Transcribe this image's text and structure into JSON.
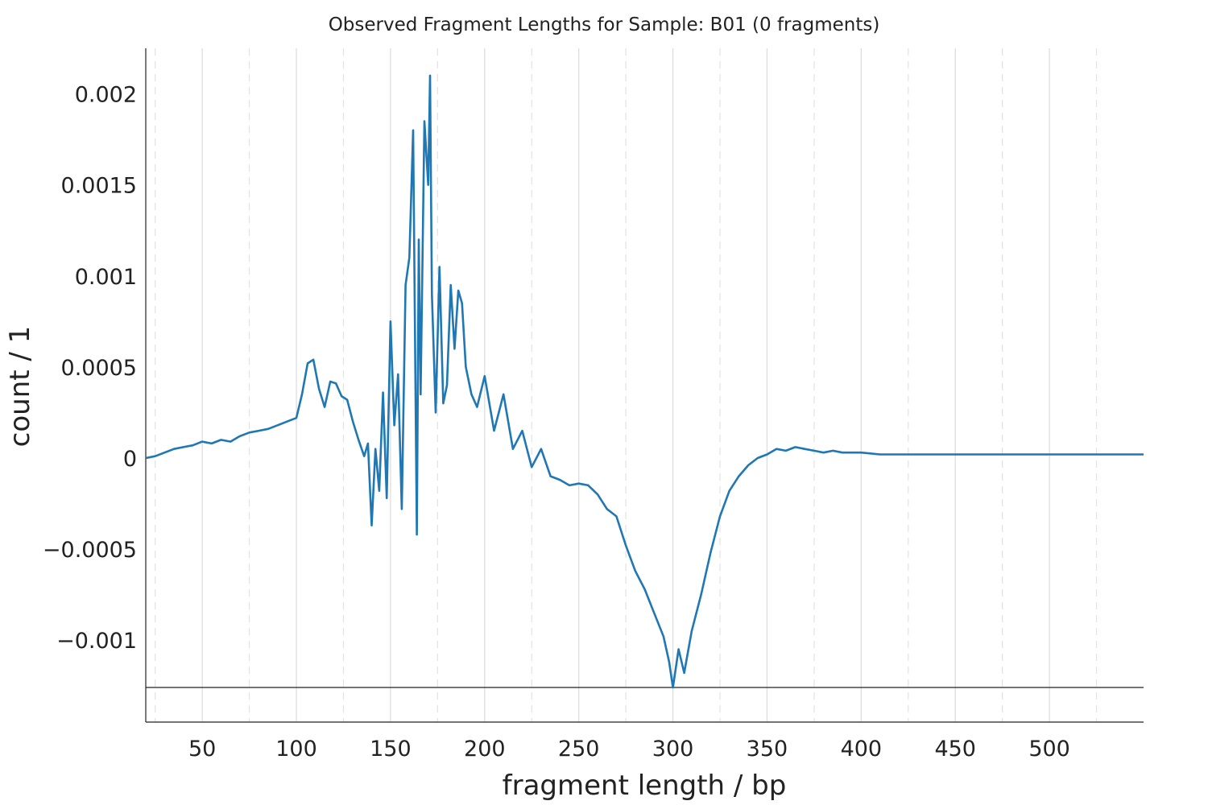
{
  "chart_data": {
    "type": "line",
    "title": "Observed Fragment Lengths for Sample: B01 (0 fragments)",
    "xlabel": "fragment length / bp",
    "ylabel": "count / 1",
    "xlim": [
      20,
      550
    ],
    "ylim": [
      -0.00145,
      0.00225
    ],
    "xticks": [
      50,
      100,
      150,
      200,
      250,
      300,
      350,
      400,
      450,
      500
    ],
    "xtick_labels": [
      "50",
      "100",
      "150",
      "200",
      "250",
      "300",
      "350",
      "400",
      "450",
      "500"
    ],
    "x_minor_ticks": [
      25,
      75,
      125,
      175,
      225,
      275,
      325,
      375,
      425,
      475,
      525
    ],
    "yticks": [
      0.002,
      0.0015,
      0.001,
      0.0005,
      0,
      -0.0005,
      -0.001
    ],
    "ytick_labels": [
      "0.002",
      "0.0015",
      "0.001",
      "0.0005",
      "0",
      "−0.0005",
      "−0.001"
    ],
    "grid": "vertical",
    "hline": -0.00126,
    "series": [
      {
        "color": "#1f77b4",
        "x": [
          20,
          25,
          30,
          35,
          40,
          45,
          50,
          55,
          60,
          65,
          70,
          75,
          80,
          85,
          90,
          95,
          100,
          103,
          106,
          109,
          112,
          115,
          118,
          121,
          124,
          127,
          130,
          133,
          136,
          138,
          140,
          142,
          144,
          146,
          148,
          150,
          152,
          154,
          156,
          158,
          160,
          162,
          164,
          165,
          166,
          168,
          170,
          171,
          172,
          174,
          176,
          178,
          180,
          182,
          184,
          186,
          188,
          190,
          193,
          196,
          200,
          205,
          210,
          215,
          220,
          225,
          230,
          235,
          240,
          245,
          250,
          255,
          260,
          265,
          270,
          275,
          280,
          285,
          290,
          295,
          298,
          300,
          303,
          306,
          310,
          315,
          320,
          325,
          330,
          335,
          340,
          345,
          350,
          355,
          360,
          365,
          370,
          375,
          380,
          385,
          390,
          400,
          410,
          420,
          430,
          440,
          450,
          460,
          470,
          480,
          490,
          500,
          510,
          520,
          530,
          540,
          550
        ],
        "y": [
          0.0,
          1e-05,
          3e-05,
          5e-05,
          6e-05,
          7e-05,
          9e-05,
          8e-05,
          0.0001,
          9e-05,
          0.00012,
          0.00014,
          0.00015,
          0.00016,
          0.00018,
          0.0002,
          0.00022,
          0.00035,
          0.00052,
          0.00054,
          0.00038,
          0.00028,
          0.00042,
          0.00041,
          0.00034,
          0.00032,
          0.0002,
          0.0001,
          1e-05,
          8e-05,
          -0.00037,
          5e-05,
          -0.00018,
          0.00036,
          -0.00022,
          0.00075,
          0.00018,
          0.00046,
          -0.00028,
          0.00095,
          0.0011,
          0.0018,
          -0.00042,
          0.0012,
          0.00035,
          0.00185,
          0.0015,
          0.0021,
          0.0009,
          0.00025,
          0.00105,
          0.0003,
          0.0004,
          0.00095,
          0.0006,
          0.00092,
          0.00085,
          0.0005,
          0.00035,
          0.00028,
          0.00045,
          0.00015,
          0.00035,
          5e-05,
          0.00015,
          -5e-05,
          5e-05,
          -0.0001,
          -0.00012,
          -0.00015,
          -0.00014,
          -0.00015,
          -0.0002,
          -0.00028,
          -0.00032,
          -0.00048,
          -0.00062,
          -0.00072,
          -0.00085,
          -0.00098,
          -0.00112,
          -0.00126,
          -0.00105,
          -0.00118,
          -0.00095,
          -0.00075,
          -0.00052,
          -0.00032,
          -0.00018,
          -0.0001,
          -4e-05,
          0.0,
          2e-05,
          5e-05,
          4e-05,
          6e-05,
          5e-05,
          4e-05,
          3e-05,
          4e-05,
          3e-05,
          3e-05,
          2e-05,
          2e-05,
          2e-05,
          2e-05,
          2e-05,
          2e-05,
          2e-05,
          2e-05,
          2e-05,
          2e-05,
          2e-05,
          2e-05,
          2e-05,
          2e-05,
          2e-05
        ]
      }
    ]
  }
}
